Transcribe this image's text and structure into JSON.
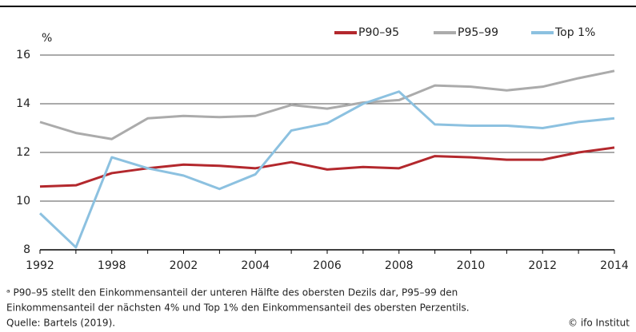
{
  "chart_data": {
    "type": "line",
    "y_label": "%",
    "categories": [
      "1992",
      null,
      "1998",
      null,
      "2002",
      null,
      "2004",
      null,
      "2006",
      null,
      "2008",
      null,
      "2010",
      null,
      "2012",
      null,
      "2014"
    ],
    "series": [
      {
        "name": "P90–95",
        "color": "#b3282d",
        "values": [
          10.6,
          10.65,
          11.15,
          11.35,
          11.5,
          11.45,
          11.35,
          11.6,
          11.3,
          11.4,
          11.35,
          11.85,
          11.8,
          11.7,
          11.7,
          12.0,
          12.2
        ]
      },
      {
        "name": "P95–99",
        "color": "#ababab",
        "values": [
          13.25,
          12.8,
          12.55,
          13.4,
          13.5,
          13.45,
          13.5,
          13.95,
          13.8,
          14.05,
          14.15,
          14.75,
          14.7,
          14.55,
          14.7,
          15.05,
          15.35
        ]
      },
      {
        "name": "Top 1%",
        "color": "#8cc1e0",
        "values": [
          9.5,
          8.1,
          11.8,
          11.35,
          11.05,
          10.5,
          11.1,
          12.9,
          13.2,
          14.0,
          14.5,
          13.15,
          13.1,
          13.1,
          13.0,
          13.25,
          13.4
        ]
      }
    ],
    "ylim": [
      8,
      16
    ],
    "yticks": [
      8,
      10,
      12,
      14,
      16
    ],
    "grid": true,
    "notes": [
      "ᵃ P90–95 stellt den Einkommensanteil der unteren Hälfte des obersten Dezils dar, P95–99 den",
      "Einkommensanteil der nächsten 4% und Top 1% den Einkommensanteil des obersten Perzentils."
    ],
    "source": "Quelle: Bartels (2019).",
    "credit": "© ifo Institut"
  }
}
